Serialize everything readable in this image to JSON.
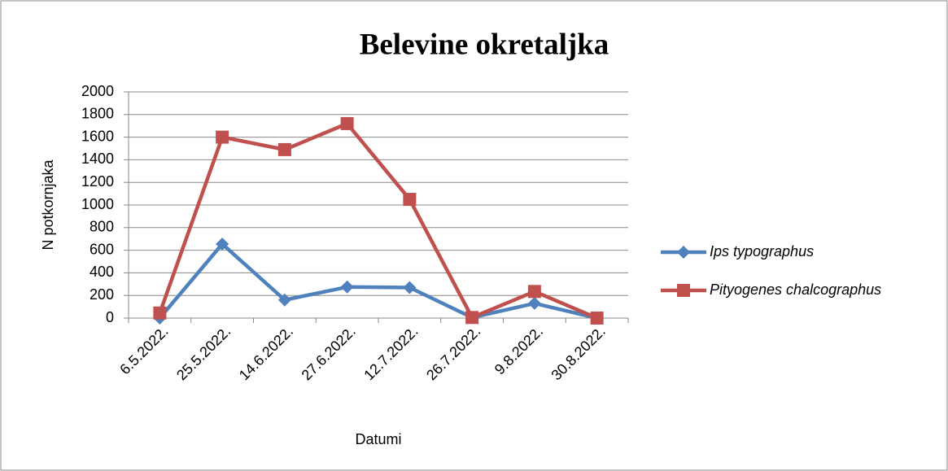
{
  "chart_data": {
    "type": "line",
    "title": "Belevine okretaljka",
    "x_label": "Datumi",
    "y_label": "N potkornjaka",
    "categories": [
      "6.5.2022.",
      "25.5.2022.",
      "14.6.2022.",
      "27.6.2022.",
      "12.7.2022.",
      "26.7.2022.",
      "9.8.2022.",
      "30.8.2022."
    ],
    "series": [
      {
        "name": "Ips typographus",
        "color": "#4f81bd",
        "marker": "diamond",
        "values": [
          0,
          655,
          160,
          275,
          270,
          5,
          130,
          0
        ]
      },
      {
        "name": "Pityogenes chalcographus",
        "color": "#c0504d",
        "marker": "square",
        "values": [
          45,
          1600,
          1490,
          1720,
          1050,
          5,
          235,
          0
        ]
      }
    ],
    "ylim": [
      0,
      2000
    ],
    "yticks": [
      0,
      200,
      400,
      600,
      800,
      1000,
      1200,
      1400,
      1600,
      1800,
      2000
    ],
    "grid": true,
    "legend": "right"
  }
}
